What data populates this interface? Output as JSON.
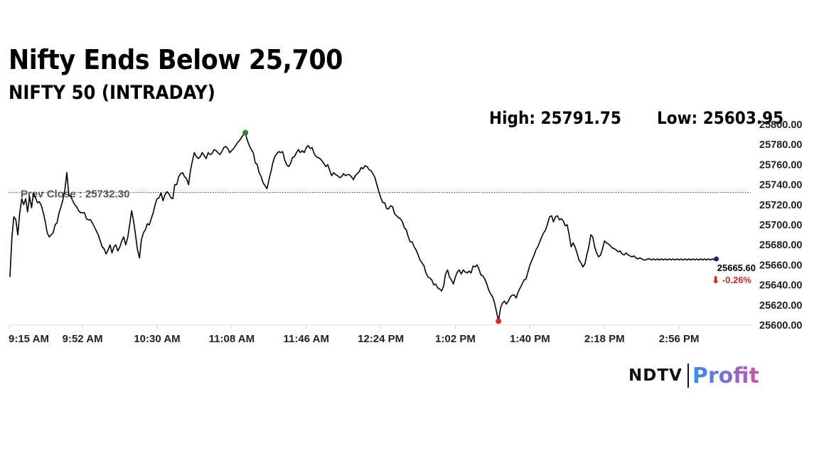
{
  "header": {
    "title": "Nifty Ends Below 25,700",
    "subtitle": "NIFTY 50 (INTRADAY)",
    "high_text": "High: 25791.75",
    "low_text": "Low: 25603.95"
  },
  "branding": {
    "logo_ndtv": "NDTV",
    "logo_profit": "Profit"
  },
  "chart_data": {
    "type": "line",
    "title": "NIFTY 50 (INTRADAY)",
    "y_ticks": [
      "25600.00",
      "25620.00",
      "25640.00",
      "25660.00",
      "25680.00",
      "25700.00",
      "25720.00",
      "25740.00",
      "25760.00",
      "25780.00",
      "25800.00"
    ],
    "ylim": [
      25600,
      25800
    ],
    "x_ticks": [
      "9:15 AM",
      "9:52 AM",
      "10:30 AM",
      "11:08 AM",
      "11:46 AM",
      "12:24 PM",
      "1:02 PM",
      "1:40 PM",
      "2:18 PM",
      "2:56 PM"
    ],
    "x_tick_minutes": [
      0,
      37,
      75,
      113,
      151,
      189,
      227,
      265,
      303,
      341
    ],
    "prev_close": 25732.3,
    "prev_close_label": "Prev Close : 25732.30",
    "last_value_label": "25665.60",
    "change_label": "⬇ -0.26%",
    "high": 25791.75,
    "low": 25603.95,
    "colors": {
      "line": "#000000",
      "high_marker": "#2e7d32",
      "low_marker": "#d32f2f",
      "last_marker": "#1a237e",
      "prev_close_line": "#b71c1c",
      "change": "#c62828"
    },
    "series": [
      {
        "values_x_minutes": [
          0,
          1,
          2,
          3,
          4,
          5,
          6,
          7,
          8,
          9,
          10,
          11,
          12,
          13,
          14,
          15,
          16,
          17,
          18,
          19,
          20,
          21,
          22,
          23,
          24,
          25,
          26,
          27,
          28,
          29,
          30,
          31,
          32,
          33,
          34,
          35,
          36,
          37,
          38,
          39,
          40,
          41,
          42,
          43,
          44,
          45,
          46,
          47,
          48,
          49,
          50,
          51,
          52,
          53,
          54,
          55,
          56,
          57,
          58,
          59,
          60,
          61,
          62,
          63,
          64,
          65,
          66,
          67,
          68,
          69,
          70,
          71,
          72,
          73,
          74,
          75,
          76,
          77,
          78,
          79,
          80,
          81,
          82,
          83,
          84,
          85,
          86,
          87,
          88,
          89,
          90,
          91,
          92,
          93,
          94,
          95,
          96,
          97,
          98,
          99,
          100,
          101,
          102,
          103,
          104,
          105,
          106,
          107,
          108,
          109,
          110,
          111,
          112,
          113,
          114,
          115,
          116,
          117,
          118,
          119,
          120,
          121,
          122,
          123,
          124,
          125,
          126,
          127,
          128,
          129,
          130,
          131,
          132,
          133,
          134,
          135,
          136,
          137,
          138,
          139,
          140,
          141,
          142,
          143,
          144,
          145,
          146,
          147,
          148,
          149,
          150,
          151,
          152,
          153,
          154,
          155,
          156,
          157,
          158,
          159,
          160,
          161,
          162,
          163,
          164,
          165,
          166,
          167,
          168,
          169,
          170,
          171,
          172,
          173,
          174,
          175,
          176,
          177,
          178,
          179,
          180,
          181,
          182,
          183,
          184,
          185,
          186,
          187,
          188,
          189,
          190,
          191,
          192,
          193,
          194,
          195,
          196,
          197,
          198,
          199,
          200,
          201,
          202,
          203,
          204,
          205,
          206,
          207,
          208,
          209,
          210,
          211,
          212,
          213,
          214,
          215,
          216,
          217,
          218,
          219,
          220,
          221,
          222,
          223,
          224,
          225,
          226,
          227,
          228,
          229,
          230,
          231,
          232,
          233,
          234,
          235,
          236,
          237,
          238,
          239,
          240,
          241,
          242,
          243,
          244,
          245,
          246,
          247,
          248,
          249,
          250,
          251,
          252,
          253,
          254,
          255,
          256,
          257,
          258,
          259,
          260,
          261,
          262,
          263,
          264,
          265,
          266,
          267,
          268,
          269,
          270,
          271,
          272,
          273,
          274,
          275,
          276,
          277,
          278,
          279,
          280,
          281,
          282,
          283,
          284,
          285,
          286,
          287,
          288,
          289,
          290,
          291,
          292,
          293,
          294,
          295,
          296,
          297,
          298,
          299,
          300,
          301,
          302,
          303,
          304,
          305,
          306,
          307,
          308,
          309,
          310,
          311,
          312,
          313,
          314,
          315,
          316,
          317,
          318,
          319,
          320,
          321,
          322,
          323,
          324,
          325,
          326,
          327,
          328,
          329,
          330,
          331,
          332,
          333,
          334,
          335,
          336,
          337,
          338,
          339,
          340,
          341,
          342,
          343,
          344,
          345,
          346,
          347,
          348,
          349,
          350,
          351,
          352,
          353,
          354,
          355,
          356,
          357,
          358,
          359,
          360,
          361,
          362,
          363,
          364,
          365,
          366,
          367,
          368,
          369,
          370,
          371,
          372,
          373,
          374,
          375
        ],
        "values": [
          25648,
          25688,
          25708,
          25705,
          25690,
          25712,
          25726,
          25720,
          25726,
          25713,
          25728,
          25717,
          25732,
          25727,
          25722,
          25723,
          25719,
          25712,
          25703,
          25692,
          25688,
          25690,
          25692,
          25700,
          25702,
          25712,
          25718,
          25725,
          25735,
          25752,
          25730,
          25728,
          25724,
          25720,
          25718,
          25714,
          25712,
          25712,
          25712,
          25706,
          25705,
          25705,
          25702,
          25698,
          25694,
          25690,
          25684,
          25678,
          25676,
          25671,
          25675,
          25680,
          25672,
          25678,
          25680,
          25674,
          25678,
          25684,
          25688,
          25680,
          25687,
          25700,
          25714,
          25704,
          25690,
          25675,
          25667,
          25685,
          25692,
          25695,
          25701,
          25700,
          25706,
          25712,
          25720,
          25726,
          25727,
          25732,
          25724,
          25730,
          25733,
          25731,
          25727,
          25726,
          25740,
          25740,
          25748,
          25751,
          25752,
          25748,
          25746,
          25740,
          25754,
          25764,
          25772,
          25768,
          25766,
          25768,
          25772,
          25769,
          25766,
          25772,
          25770,
          25771,
          25775,
          25774,
          25772,
          25770,
          25773,
          25777,
          25778,
          25776,
          25772,
          25774,
          25776,
          25779,
          25782,
          25784,
          25787,
          25790,
          25791,
          25784,
          25779,
          25775,
          25772,
          25762,
          25760,
          25752,
          25748,
          25742,
          25739,
          25736,
          25745,
          25753,
          25762,
          25768,
          25771,
          25773,
          25772,
          25773,
          25765,
          25760,
          25758,
          25761,
          25767,
          25768,
          25772,
          25775,
          25772,
          25774,
          25772,
          25777,
          25779,
          25776,
          25777,
          25771,
          25768,
          25767,
          25766,
          25764,
          25761,
          25758,
          25760,
          25754,
          25749,
          25752,
          25750,
          25749,
          25747,
          25748,
          25751,
          25749,
          25750,
          25750,
          25748,
          25745,
          25749,
          25751,
          25753,
          25757,
          25756,
          25759,
          25758,
          25755,
          25754,
          25751,
          25747,
          25740,
          25733,
          25727,
          25722,
          25722,
          25716,
          25716,
          25719,
          25718,
          25711,
          25709,
          25707,
          25706,
          25703,
          25697,
          25695,
          25688,
          25683,
          25683,
          25678,
          25675,
          25670,
          25665,
          25662,
          25659,
          25652,
          25648,
          25647,
          25645,
          25640,
          25641,
          25637,
          25636,
          25634,
          25639,
          25651,
          25655,
          25648,
          25645,
          25641,
          25648,
          25653,
          25655,
          25651,
          25655,
          25653,
          25652,
          25654,
          25652,
          25659,
          25658,
          25660,
          25656,
          25650,
          25649,
          25646,
          25641,
          25635,
          25631,
          25628,
          25622,
          25613,
          25604,
          25617,
          25622,
          25624,
          25621,
          25624,
          25628,
          25630,
          25630,
          25627,
          25633,
          25637,
          25641,
          25645,
          25646,
          25653,
          25660,
          25665,
          25669,
          25675,
          25678,
          25683,
          25688,
          25692,
          25695,
          25701,
          25708,
          25709,
          25703,
          25708,
          25709,
          25705,
          25706,
          25704,
          25699,
          25700,
          25690,
          25678,
          25682,
          25678,
          25672,
          25665,
          25662,
          25658,
          25661,
          25670,
          25678,
          25690,
          25688,
          25678,
          25672,
          25668,
          25670,
          25676,
          25684,
          25682,
          25681,
          25679,
          25677,
          25676,
          25675,
          25673,
          25674,
          25671,
          25670,
          25672,
          25670,
          25669,
          25668,
          25669,
          25667,
          25666,
          25667,
          25666,
          25665,
          25665,
          25666,
          25666,
          25665,
          25666,
          25665,
          25666,
          25665,
          25666,
          25665,
          25666,
          25665,
          25666,
          25665,
          25666,
          25665,
          25666,
          25665,
          25666,
          25665,
          25666,
          25665,
          25666,
          25665,
          25666,
          25665,
          25666,
          25665,
          25666,
          25665,
          25666,
          25665,
          25666,
          25665,
          25666,
          25665,
          25666
        ]
      }
    ]
  }
}
